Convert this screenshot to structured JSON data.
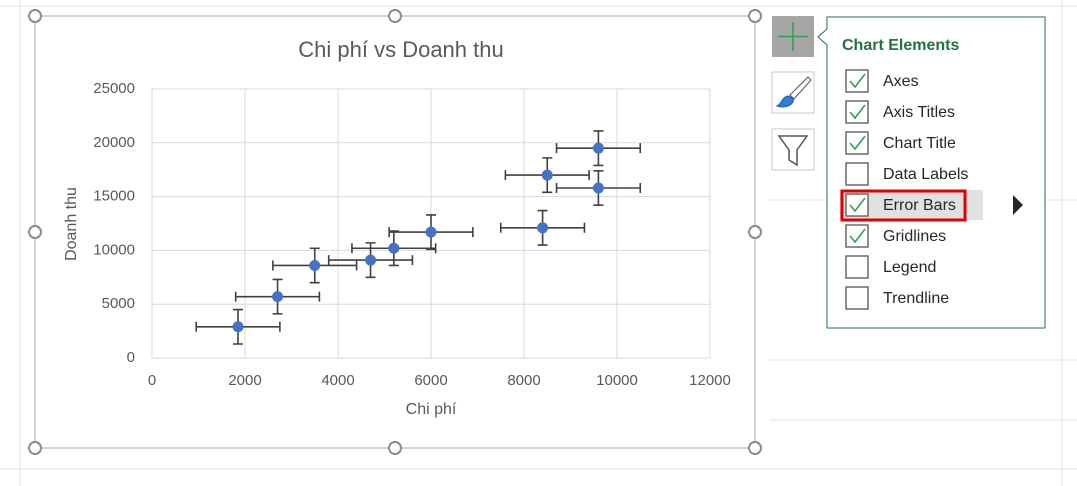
{
  "chart_data": {
    "type": "scatter",
    "title": "Chi phí vs Doanh thu",
    "x_label": "Chi phí",
    "y_label": "Doanh thu",
    "x": [
      1850,
      2700,
      3500,
      4700,
      5200,
      6000,
      8400,
      8500,
      9600,
      9600
    ],
    "values": [
      2900,
      5700,
      8600,
      9100,
      10200,
      11700,
      12100,
      17000,
      15800,
      19500
    ],
    "x_errors": [
      900,
      900,
      900,
      900,
      900,
      900,
      900,
      900,
      900,
      900
    ],
    "y_errors": [
      1600,
      1600,
      1600,
      1600,
      1600,
      1600,
      1600,
      1600,
      1600,
      1600
    ],
    "color": "#4472c4",
    "error_color": "#404040",
    "xlim": [
      0,
      12000
    ],
    "xticks": [
      0,
      2000,
      4000,
      6000,
      8000,
      10000,
      12000
    ],
    "ylim": [
      0,
      25000
    ],
    "yticks": [
      0,
      5000,
      10000,
      15000,
      20000,
      25000
    ],
    "grid": true
  },
  "panel": {
    "title": "Chart Elements",
    "items": [
      {
        "label": "Axes",
        "checked": true
      },
      {
        "label": "Axis Titles",
        "checked": true
      },
      {
        "label": "Chart Title",
        "checked": true
      },
      {
        "label": "Data Labels",
        "checked": false
      },
      {
        "label": "Error Bars",
        "checked": true,
        "selected": true
      },
      {
        "label": "Gridlines",
        "checked": true
      },
      {
        "label": "Legend",
        "checked": false
      },
      {
        "label": "Trendline",
        "checked": false
      }
    ]
  }
}
